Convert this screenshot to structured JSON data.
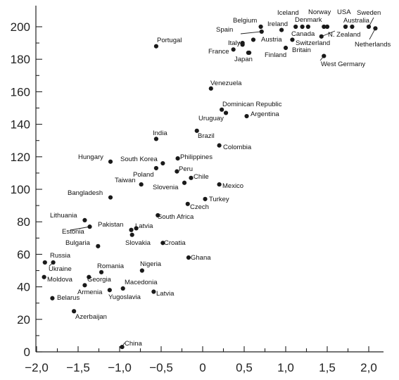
{
  "chart_data": {
    "type": "scatter",
    "title": "",
    "xlabel": "",
    "ylabel": "",
    "xlim": [
      -2.0,
      2.2
    ],
    "ylim": [
      0,
      210
    ],
    "x_ticks": [
      -2.0,
      -1.5,
      -1.0,
      -0.5,
      0,
      0.5,
      1.0,
      1.5,
      2.0
    ],
    "x_tick_labels": [
      "−2,0",
      "−1,5",
      "−1,0",
      "−0,5",
      "0",
      "0,5",
      "1,0",
      "1,5",
      "2,0"
    ],
    "y_ticks": [
      0,
      20,
      40,
      60,
      80,
      100,
      120,
      140,
      160,
      180,
      200
    ],
    "y_tick_labels": [
      "0",
      "20",
      "40",
      "60",
      "80",
      "100",
      "120",
      "140",
      "160",
      "180",
      "200"
    ],
    "grid": false,
    "points": [
      {
        "label": "Iceland",
        "x": 1.12,
        "y": 200
      },
      {
        "label": "Denmark",
        "x": 1.2,
        "y": 200
      },
      {
        "label": "Norway",
        "x": 1.27,
        "y": 200
      },
      {
        "label": "USA",
        "x": 1.46,
        "y": 200
      },
      {
        "label": "Sweden",
        "x": 2.0,
        "y": 200
      },
      {
        "label": "Belgium",
        "x": 0.7,
        "y": 200
      },
      {
        "label": "Ireland",
        "x": 0.95,
        "y": 198
      },
      {
        "label": "Spain",
        "x": 0.71,
        "y": 197
      },
      {
        "label": "Austria",
        "x": 0.61,
        "y": 192
      },
      {
        "label": "Canada",
        "x": 1.08,
        "y": 192
      },
      {
        "label": "N. Zealand",
        "x": 1.43,
        "y": 194
      },
      {
        "label": "Australia",
        "x": 1.72,
        "y": 200
      },
      {
        "label": "Italy",
        "x": 0.48,
        "y": 189
      },
      {
        "label": "Switzerland",
        "x": 1.5,
        "y": 200
      },
      {
        "label": "Netherlands",
        "x": 2.08,
        "y": 199
      },
      {
        "label": "France",
        "x": 0.37,
        "y": 186
      },
      {
        "label": "Britain",
        "x": 1.0,
        "y": 187
      },
      {
        "label": "Finland",
        "x": 0.56,
        "y": 184
      },
      {
        "label": "Japan",
        "x": 0.55,
        "y": 184
      },
      {
        "label": "West Germany",
        "x": 1.46,
        "y": 182
      },
      {
        "label": "",
        "x": 1.8,
        "y": 200
      },
      {
        "label": "",
        "x": 0.48,
        "y": 190
      },
      {
        "label": "Portugal",
        "x": -0.56,
        "y": 188
      },
      {
        "label": "Venezuela",
        "x": 0.1,
        "y": 162
      },
      {
        "label": "Dominican Republic",
        "x": 0.23,
        "y": 149
      },
      {
        "label": "Argentina",
        "x": 0.53,
        "y": 145
      },
      {
        "label": "Uruguay",
        "x": 0.28,
        "y": 147
      },
      {
        "label": "India",
        "x": -0.56,
        "y": 131
      },
      {
        "label": "Brazil",
        "x": -0.07,
        "y": 136
      },
      {
        "label": "Colombia",
        "x": 0.2,
        "y": 127
      },
      {
        "label": "Hungary",
        "x": -1.11,
        "y": 117
      },
      {
        "label": "South Korea",
        "x": -0.48,
        "y": 116
      },
      {
        "label": "Philippines",
        "x": -0.3,
        "y": 119
      },
      {
        "label": "Peru",
        "x": -0.31,
        "y": 111
      },
      {
        "label": "Poland",
        "x": -0.56,
        "y": 113
      },
      {
        "label": "Chile",
        "x": -0.14,
        "y": 107
      },
      {
        "label": "Taiwan",
        "x": -0.74,
        "y": 103
      },
      {
        "label": "Slovenia",
        "x": -0.22,
        "y": 104
      },
      {
        "label": "Mexico",
        "x": 0.2,
        "y": 103
      },
      {
        "label": "Bangladesh",
        "x": -1.11,
        "y": 95
      },
      {
        "label": "Turkey",
        "x": 0.03,
        "y": 94
      },
      {
        "label": "Czech",
        "x": -0.18,
        "y": 91
      },
      {
        "label": "South Africa",
        "x": -0.54,
        "y": 84
      },
      {
        "label": "Lithuania",
        "x": -1.42,
        "y": 81
      },
      {
        "label": "Estonia",
        "x": -1.36,
        "y": 77
      },
      {
        "label": "Pakistan",
        "x": -0.86,
        "y": 75
      },
      {
        "label": "Latvia",
        "x": -0.8,
        "y": 76
      },
      {
        "label": "Slovakia",
        "x": -0.85,
        "y": 72
      },
      {
        "label": "Bulgaria",
        "x": -1.26,
        "y": 65
      },
      {
        "label": "Croatia",
        "x": -0.48,
        "y": 67
      },
      {
        "label": "Ghana",
        "x": -0.17,
        "y": 58
      },
      {
        "label": "Russia",
        "x": -1.9,
        "y": 55
      },
      {
        "label": "Ukraine",
        "x": -1.8,
        "y": 55
      },
      {
        "label": "Nigeria",
        "x": -0.73,
        "y": 50
      },
      {
        "label": "Romania",
        "x": -1.22,
        "y": 49
      },
      {
        "label": "Moldova",
        "x": -1.91,
        "y": 46
      },
      {
        "label": "Georgia",
        "x": -1.37,
        "y": 46
      },
      {
        "label": "Armenia",
        "x": -1.42,
        "y": 41
      },
      {
        "label": "Macedonia",
        "x": -0.96,
        "y": 39
      },
      {
        "label": "Yugoslavia",
        "x": -1.12,
        "y": 38
      },
      {
        "label": "Latvia",
        "x": -0.59,
        "y": 37
      },
      {
        "label": "Belarus",
        "x": -1.81,
        "y": 33
      },
      {
        "label": "Azerbaijan",
        "x": -1.55,
        "y": 25
      },
      {
        "label": "China",
        "x": -0.97,
        "y": 3
      }
    ]
  }
}
